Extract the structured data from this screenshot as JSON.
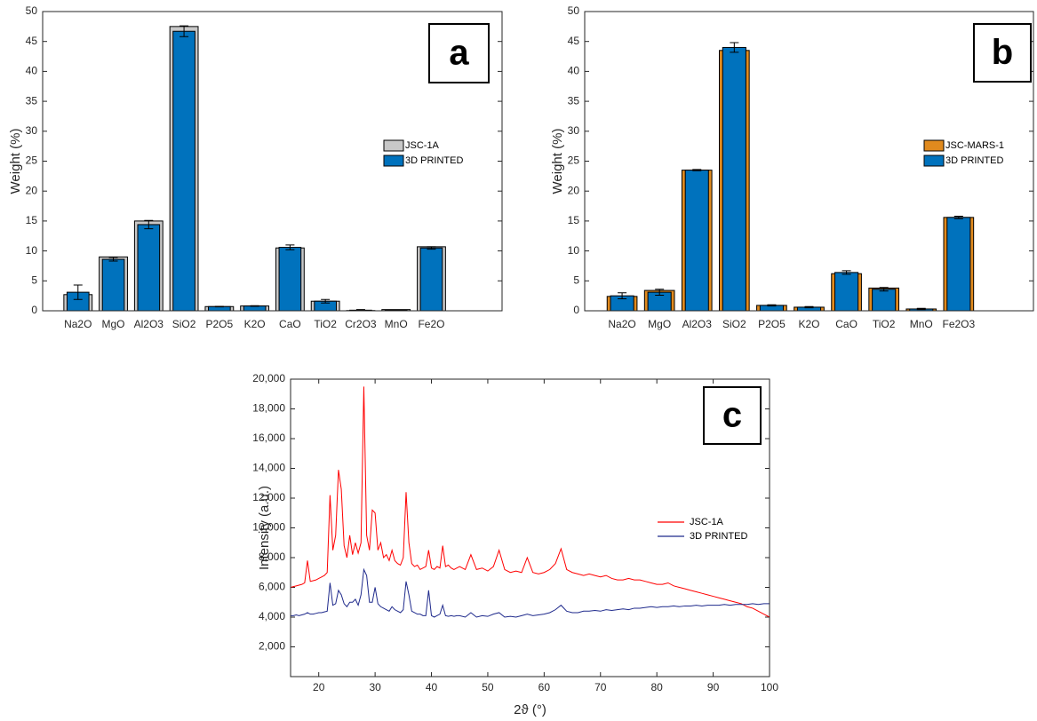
{
  "chart_data": [
    {
      "type": "bar",
      "panel_label": "a",
      "ylabel": "Weight (%)",
      "categories": [
        "Na2O",
        "MgO",
        "Al2O3",
        "SiO2",
        "P2O5",
        "K2O",
        "CaO",
        "TiO2",
        "Cr2O3",
        "MnO",
        "Fe2O"
      ],
      "series": [
        {
          "name": "JSC-1A",
          "color": "#c8c8c8",
          "values": [
            2.7,
            9.0,
            15.0,
            47.5,
            0.7,
            0.8,
            10.5,
            1.6,
            0.04,
            0.2,
            10.7
          ]
        },
        {
          "name": "3D PRINTED",
          "color": "#0072bd",
          "values": [
            3.1,
            8.6,
            14.4,
            46.7,
            0.7,
            0.8,
            10.6,
            1.6,
            0.1,
            0.1,
            10.5
          ],
          "errors": [
            1.2,
            0.3,
            0.7,
            0.9,
            0.05,
            0.05,
            0.4,
            0.3,
            0.1,
            0.05,
            0.2
          ]
        }
      ],
      "ylim": [
        0,
        50
      ],
      "yticks": [
        0,
        5,
        10,
        15,
        20,
        25,
        30,
        35,
        40,
        45,
        50
      ]
    },
    {
      "type": "bar",
      "panel_label": "b",
      "ylabel": "Weight (%)",
      "categories": [
        "Na2O",
        "MgO",
        "Al2O3",
        "SiO2",
        "P2O5",
        "K2O",
        "CaO",
        "TiO2",
        "MnO",
        "Fe2O3"
      ],
      "series": [
        {
          "name": "JSC-MARS-1",
          "color": "#e08a1e",
          "values": [
            2.4,
            3.4,
            23.5,
            43.5,
            0.9,
            0.6,
            6.2,
            3.8,
            0.3,
            15.6
          ]
        },
        {
          "name": "3D PRINTED",
          "color": "#0072bd",
          "values": [
            2.5,
            3.1,
            23.5,
            44.0,
            0.9,
            0.6,
            6.4,
            3.6,
            0.3,
            15.6
          ],
          "errors": [
            0.5,
            0.5,
            0.1,
            0.8,
            0.1,
            0.1,
            0.3,
            0.3,
            0.1,
            0.2
          ]
        }
      ],
      "ylim": [
        0,
        50
      ],
      "yticks": [
        0,
        5,
        10,
        15,
        20,
        25,
        30,
        35,
        40,
        45,
        50
      ]
    },
    {
      "type": "line",
      "panel_label": "c",
      "xlabel": "2ϑ (°)",
      "ylabel": "Intensity (a.u.)",
      "x": [
        15,
        15.5,
        16,
        16.5,
        17,
        17.5,
        18,
        18.5,
        19,
        19.5,
        20,
        20.5,
        21,
        21.5,
        22,
        22.5,
        23,
        23.5,
        24,
        24.5,
        25,
        25.5,
        26,
        26.5,
        27,
        27.5,
        28,
        28.5,
        29,
        29.5,
        30,
        30.5,
        31,
        31.5,
        32,
        32.5,
        33,
        33.5,
        34,
        34.5,
        35,
        35.5,
        36,
        36.5,
        37,
        37.5,
        38,
        38.5,
        39,
        39.5,
        40,
        40.5,
        41,
        41.5,
        42,
        42.5,
        43,
        43.5,
        44,
        44.5,
        45,
        46,
        47,
        48,
        49,
        50,
        51,
        52,
        53,
        54,
        55,
        56,
        57,
        58,
        59,
        60,
        61,
        62,
        63,
        64,
        65,
        66,
        67,
        68,
        69,
        70,
        71,
        72,
        73,
        74,
        75,
        76,
        77,
        78,
        79,
        80,
        81,
        82,
        83,
        84,
        85,
        86,
        87,
        88,
        89,
        90,
        91,
        92,
        93,
        94,
        95,
        96,
        97,
        98,
        99,
        100
      ],
      "series": [
        {
          "name": "JSC-1A",
          "color": "#ff0000",
          "values": [
            6000,
            6050,
            6100,
            6150,
            6200,
            6300,
            7800,
            6400,
            6450,
            6500,
            6600,
            6700,
            6800,
            7000,
            12200,
            8500,
            9500,
            13900,
            12600,
            8800,
            8000,
            9500,
            8200,
            9000,
            8300,
            9000,
            19500,
            9500,
            8500,
            11200,
            11000,
            8500,
            9000,
            8000,
            8200,
            7800,
            8500,
            7800,
            7600,
            7500,
            8000,
            12400,
            9000,
            7600,
            7400,
            7500,
            7200,
            7300,
            7400,
            8500,
            7300,
            7200,
            7400,
            7300,
            8800,
            7400,
            7500,
            7300,
            7200,
            7300,
            7400,
            7200,
            8200,
            7200,
            7300,
            7100,
            7400,
            8500,
            7200,
            7000,
            7100,
            7000,
            8000,
            7000,
            6900,
            7000,
            7200,
            7600,
            8600,
            7200,
            7000,
            6900,
            6800,
            6900,
            6800,
            6700,
            6800,
            6600,
            6500,
            6500,
            6600,
            6500,
            6500,
            6400,
            6300,
            6200,
            6200,
            6300,
            6100,
            6000,
            5900,
            5800,
            5700,
            5600,
            5500,
            5400,
            5300,
            5200,
            5100,
            5000,
            4900,
            4700,
            4600,
            4400,
            4200,
            4000
          ]
        },
        {
          "name": "3D PRINTED",
          "color": "#1f2a8c",
          "values": [
            4100,
            4100,
            4150,
            4100,
            4150,
            4200,
            4300,
            4200,
            4200,
            4250,
            4300,
            4300,
            4350,
            4400,
            6300,
            4800,
            4900,
            5800,
            5500,
            4900,
            4700,
            5000,
            5000,
            5200,
            4800,
            5500,
            7200,
            6800,
            5000,
            5000,
            6000,
            4900,
            4700,
            4600,
            4500,
            4400,
            4700,
            4500,
            4400,
            4300,
            4500,
            6400,
            5500,
            4400,
            4300,
            4200,
            4200,
            4100,
            4100,
            5800,
            4100,
            4000,
            4100,
            4200,
            4800,
            4100,
            4050,
            4100,
            4050,
            4100,
            4100,
            4000,
            4300,
            4000,
            4100,
            4050,
            4200,
            4300,
            4000,
            4050,
            4000,
            4100,
            4200,
            4100,
            4150,
            4200,
            4300,
            4500,
            4800,
            4400,
            4300,
            4300,
            4400,
            4400,
            4450,
            4400,
            4500,
            4450,
            4500,
            4550,
            4500,
            4600,
            4600,
            4650,
            4700,
            4650,
            4700,
            4700,
            4750,
            4700,
            4750,
            4750,
            4800,
            4750,
            4800,
            4800,
            4800,
            4850,
            4800,
            4850,
            4850,
            4850,
            4900,
            4850,
            4900,
            4900
          ]
        }
      ],
      "xlim": [
        15,
        100
      ],
      "xticks": [
        20,
        30,
        40,
        50,
        60,
        70,
        80,
        90,
        100
      ],
      "ylim": [
        0,
        20000
      ],
      "yticks": [
        {
          "value": 2000,
          "label": "2,000"
        },
        {
          "value": 4000,
          "label": "4,000"
        },
        {
          "value": 6000,
          "label": "6,000"
        },
        {
          "value": 8000,
          "label": "8,000"
        },
        {
          "value": 10000,
          "label": "10,000"
        },
        {
          "value": 12000,
          "label": "12,000"
        },
        {
          "value": 14000,
          "label": "14,000"
        },
        {
          "value": 16000,
          "label": "16,000"
        },
        {
          "value": 18000,
          "label": "18,000"
        },
        {
          "value": 20000,
          "label": "20,000"
        }
      ]
    }
  ]
}
